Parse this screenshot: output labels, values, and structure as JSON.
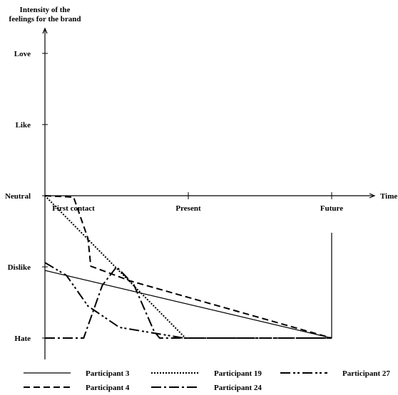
{
  "chart_data": {
    "type": "line",
    "ylabel_lines": [
      "Intensity of the",
      "feelings for the brand"
    ],
    "xlabel": "Time",
    "y_ticks": [
      "Hate",
      "Dislike",
      "Neutral",
      "Like",
      "Love"
    ],
    "x_ticks": [
      "First contact",
      "Present",
      "Future"
    ],
    "x_range": [
      0,
      2
    ],
    "y_range": [
      -2,
      2
    ],
    "grid": false,
    "legend_position": "bottom",
    "series": [
      {
        "name": "Participant 3",
        "style": "solid",
        "points": [
          [
            0,
            -1.05
          ],
          [
            2,
            -2
          ],
          [
            4,
            -0.52
          ]
        ]
      },
      {
        "name": "Participant 4",
        "style": "dashed",
        "points": [
          [
            0,
            0
          ],
          [
            0.2,
            -0.02
          ],
          [
            0.3,
            -0.6
          ],
          [
            0.32,
            -0.99
          ],
          [
            0.6,
            -1.2
          ],
          [
            2,
            -2.0
          ]
        ]
      },
      {
        "name": "Participant 19",
        "style": "dotted",
        "points": [
          [
            0,
            0
          ],
          [
            0.98,
            -2.0
          ],
          [
            4,
            -2.0
          ]
        ]
      },
      {
        "name": "Participant 24",
        "style": "dashdot",
        "points": [
          [
            0,
            -2.0
          ],
          [
            0.27,
            -2.0
          ],
          [
            0.4,
            -1.26
          ],
          [
            0.5,
            -1.0
          ],
          [
            0.62,
            -1.25
          ],
          [
            0.76,
            -1.9
          ],
          [
            0.8,
            -2.0
          ],
          [
            2,
            -2.0
          ]
        ]
      },
      {
        "name": "Participant 27",
        "style": "dashdotdot",
        "points": [
          [
            0,
            -0.94
          ],
          [
            0.15,
            -1.12
          ],
          [
            0.3,
            -1.55
          ],
          [
            0.52,
            -1.85
          ],
          [
            0.97,
            -2.0
          ],
          [
            2,
            -2.0
          ]
        ]
      }
    ],
    "legend": [
      {
        "name": "Participant 3",
        "style": "solid"
      },
      {
        "name": "Participant 19",
        "style": "dotted"
      },
      {
        "name": "Participant 27",
        "style": "dashdotdot"
      },
      {
        "name": "Participant 4",
        "style": "dashed"
      },
      {
        "name": "Participant 24",
        "style": "dashdot"
      }
    ]
  }
}
